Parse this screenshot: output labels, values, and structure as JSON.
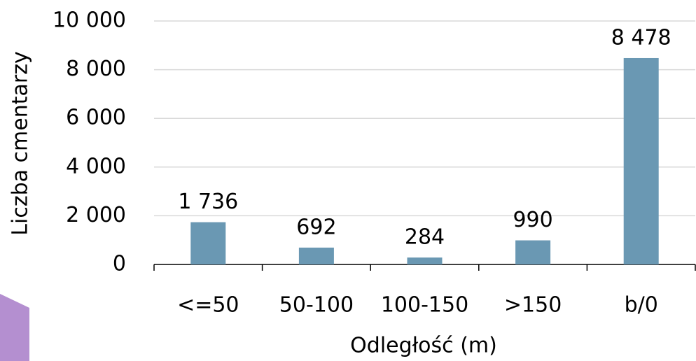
{
  "chart_data": {
    "type": "bar",
    "categories": [
      "<=50",
      "50-100",
      "100-150",
      ">150",
      "b/0"
    ],
    "values": [
      1736,
      692,
      284,
      990,
      8478
    ],
    "value_labels": [
      "1 736",
      "692",
      "284",
      "990",
      "8 478"
    ],
    "color": "#6a98b3",
    "x_label": "Odległość (m)",
    "y_label": "Liczba cmentarzy",
    "ylim": [
      0,
      10000
    ],
    "yticks": [
      0,
      {
        "value": 2000,
        "label": "2 000"
      },
      {
        "value": 4000,
        "label": "4 000"
      },
      {
        "value": 6000,
        "label": "6 000"
      },
      {
        "value": 8000,
        "label": "8 000"
      },
      {
        "value": 10000,
        "label": "10 000"
      }
    ],
    "grid": true
  }
}
